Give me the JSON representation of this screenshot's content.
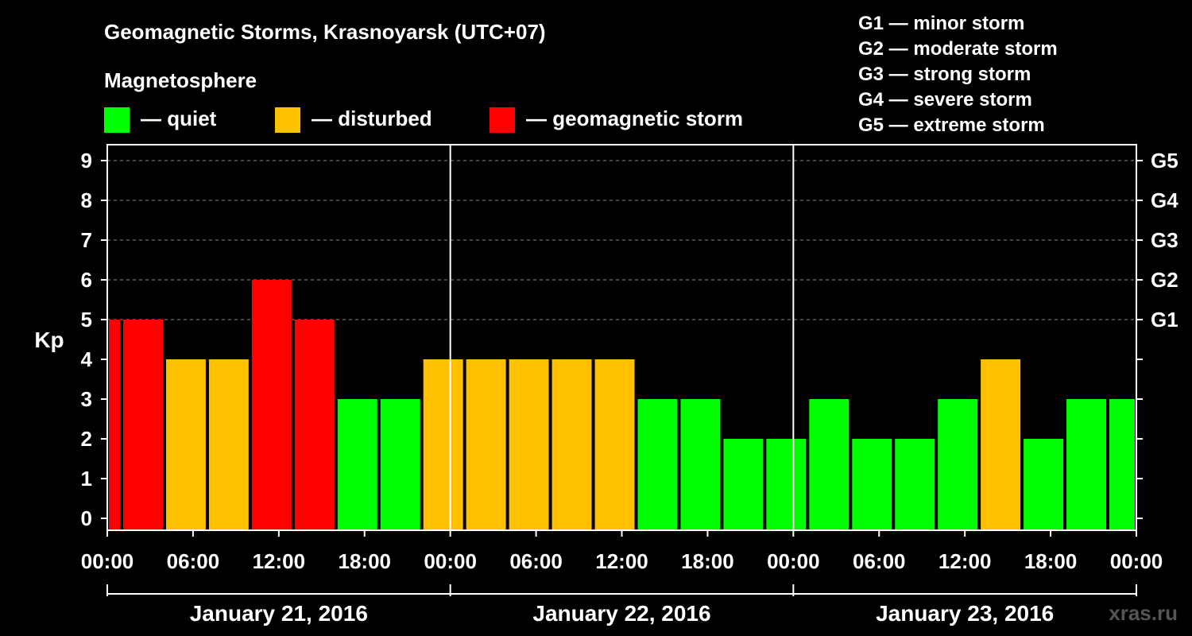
{
  "header": {
    "title": "Geomagnetic Storms, Krasnoyarsk (UTC+07)",
    "subtitle": "Magnetosphere"
  },
  "legend": {
    "states": [
      {
        "label": "— quiet",
        "color": "#00ff00"
      },
      {
        "label": "— disturbed",
        "color": "#ffc000"
      },
      {
        "label": "— geomagnetic storm",
        "color": "#ff0000"
      }
    ],
    "storm_scale": [
      "G1 — minor storm",
      "G2 — moderate storm",
      "G3 — strong storm",
      "G4 — severe storm",
      "G5 — extreme storm"
    ]
  },
  "watermark": "xras.ru",
  "chart_data": {
    "type": "bar",
    "ylabel": "Kp",
    "ylim": [
      0,
      9
    ],
    "yticks": [
      "0",
      "1",
      "2",
      "3",
      "4",
      "5",
      "6",
      "7",
      "8",
      "9"
    ],
    "right_axis_labels": [
      "G1",
      "G2",
      "G3",
      "G4",
      "G5"
    ],
    "right_axis_levels": [
      5,
      6,
      7,
      8,
      9
    ],
    "x_tick_labels": [
      "00:00",
      "06:00",
      "12:00",
      "18:00",
      "00:00",
      "06:00",
      "12:00",
      "18:00",
      "00:00",
      "06:00",
      "12:00",
      "18:00",
      "00:00"
    ],
    "days": [
      "January 21, 2016",
      "January 22, 2016",
      "January 23, 2016"
    ],
    "x_range_hours": [
      0,
      72
    ],
    "bars": [
      {
        "start": 0,
        "end": 1,
        "value": 5,
        "state": "storm"
      },
      {
        "start": 1,
        "end": 4,
        "value": 5,
        "state": "storm"
      },
      {
        "start": 4,
        "end": 7,
        "value": 4,
        "state": "disturbed"
      },
      {
        "start": 7,
        "end": 10,
        "value": 4,
        "state": "disturbed"
      },
      {
        "start": 10,
        "end": 13,
        "value": 6,
        "state": "storm"
      },
      {
        "start": 13,
        "end": 16,
        "value": 5,
        "state": "storm"
      },
      {
        "start": 16,
        "end": 19,
        "value": 3,
        "state": "quiet"
      },
      {
        "start": 19,
        "end": 22,
        "value": 3,
        "state": "quiet"
      },
      {
        "start": 22,
        "end": 25,
        "value": 4,
        "state": "disturbed"
      },
      {
        "start": 25,
        "end": 28,
        "value": 4,
        "state": "disturbed"
      },
      {
        "start": 28,
        "end": 31,
        "value": 4,
        "state": "disturbed"
      },
      {
        "start": 31,
        "end": 34,
        "value": 4,
        "state": "disturbed"
      },
      {
        "start": 34,
        "end": 37,
        "value": 4,
        "state": "disturbed"
      },
      {
        "start": 37,
        "end": 40,
        "value": 3,
        "state": "quiet"
      },
      {
        "start": 40,
        "end": 43,
        "value": 3,
        "state": "quiet"
      },
      {
        "start": 43,
        "end": 46,
        "value": 2,
        "state": "quiet"
      },
      {
        "start": 46,
        "end": 49,
        "value": 2,
        "state": "quiet"
      },
      {
        "start": 49,
        "end": 52,
        "value": 3,
        "state": "quiet"
      },
      {
        "start": 52,
        "end": 55,
        "value": 2,
        "state": "quiet"
      },
      {
        "start": 55,
        "end": 58,
        "value": 2,
        "state": "quiet"
      },
      {
        "start": 58,
        "end": 61,
        "value": 3,
        "state": "quiet"
      },
      {
        "start": 61,
        "end": 64,
        "value": 4,
        "state": "disturbed"
      },
      {
        "start": 64,
        "end": 67,
        "value": 2,
        "state": "quiet"
      },
      {
        "start": 67,
        "end": 70,
        "value": 3,
        "state": "quiet"
      },
      {
        "start": 70,
        "end": 72,
        "value": 3,
        "state": "quiet"
      }
    ],
    "colors": {
      "quiet": "#00ff00",
      "disturbed": "#ffc000",
      "storm": "#ff0000"
    },
    "grid": "dashed horizontal at Kp 5–9"
  }
}
